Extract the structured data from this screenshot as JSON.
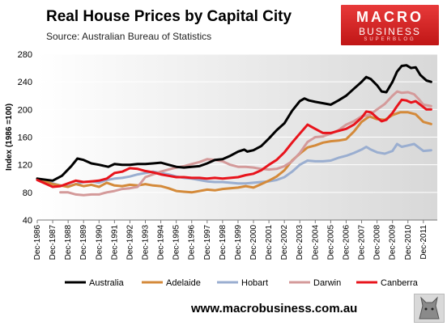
{
  "title": "Real House Prices by Capital City",
  "subtitle": "Source: Australian Bureau of Statistics",
  "logo": {
    "line1": "MACRO",
    "line2": "BUSINESS",
    "line3": "SUPERBLOG"
  },
  "footer": "www.macrobusiness.com.au",
  "chart_data": {
    "type": "line",
    "title": "Real House Prices by Capital City",
    "ylabel": "Index (1986 =100)",
    "xlabel": "",
    "ylim": [
      40,
      280
    ],
    "yticks": [
      40,
      80,
      120,
      160,
      200,
      240,
      280
    ],
    "xticks": [
      "Dec-1986",
      "Dec-1987",
      "Dec-1988",
      "Dec-1989",
      "Dec-1990",
      "Dec-1991",
      "Dec-1992",
      "Dec-1993",
      "Dec-1994",
      "Dec-1995",
      "Dec-1996",
      "Dec-1997",
      "Dec-1998",
      "Dec-1999",
      "Dec-2000",
      "Dec-2001",
      "Dec-2002",
      "Dec-2003",
      "Dec-2004",
      "Dec-2005",
      "Dec-2006",
      "Dec-2007",
      "Dec-2008",
      "Dec-2009",
      "Dec-2010",
      "Dec-2011"
    ],
    "grid": true,
    "legend_position": "bottom",
    "series": [
      {
        "name": "Australia",
        "color": "#000000",
        "points": [
          [
            1986,
            100
          ],
          [
            1987,
            97
          ],
          [
            1987.6,
            104
          ],
          [
            1988.2,
            118
          ],
          [
            1988.6,
            129
          ],
          [
            1989,
            127
          ],
          [
            1989.5,
            122
          ],
          [
            1990,
            120
          ],
          [
            1990.6,
            117
          ],
          [
            1991,
            121
          ],
          [
            1991.5,
            120
          ],
          [
            1992,
            120
          ],
          [
            1992.5,
            121
          ],
          [
            1993,
            121
          ],
          [
            1993.5,
            122
          ],
          [
            1994,
            123
          ],
          [
            1994.5,
            120
          ],
          [
            1995,
            117
          ],
          [
            1995.5,
            116
          ],
          [
            1996,
            117
          ],
          [
            1996.5,
            118
          ],
          [
            1997,
            122
          ],
          [
            1997.5,
            127
          ],
          [
            1998,
            128
          ],
          [
            1998.5,
            133
          ],
          [
            1999,
            139
          ],
          [
            1999.4,
            142
          ],
          [
            1999.6,
            139
          ],
          [
            2000,
            141
          ],
          [
            2000.5,
            147
          ],
          [
            2001,
            158
          ],
          [
            2001.5,
            170
          ],
          [
            2002,
            180
          ],
          [
            2002.5,
            198
          ],
          [
            2003,
            212
          ],
          [
            2003.3,
            216
          ],
          [
            2003.6,
            213
          ],
          [
            2004,
            211
          ],
          [
            2004.5,
            209
          ],
          [
            2005,
            207
          ],
          [
            2005.5,
            213
          ],
          [
            2006,
            220
          ],
          [
            2006.5,
            230
          ],
          [
            2007,
            240
          ],
          [
            2007.3,
            247
          ],
          [
            2007.6,
            244
          ],
          [
            2008,
            235
          ],
          [
            2008.3,
            226
          ],
          [
            2008.6,
            225
          ],
          [
            2009,
            240
          ],
          [
            2009.3,
            255
          ],
          [
            2009.6,
            263
          ],
          [
            2009.9,
            264
          ],
          [
            2010.2,
            260
          ],
          [
            2010.5,
            261
          ],
          [
            2010.8,
            250
          ],
          [
            2011.2,
            242
          ],
          [
            2011.5,
            240
          ]
        ]
      },
      {
        "name": "Adelaide",
        "color": "#d48a3a",
        "points": [
          [
            1986,
            100
          ],
          [
            1987,
            92
          ],
          [
            1988,
            88
          ],
          [
            1988.5,
            92
          ],
          [
            1989,
            89
          ],
          [
            1989.5,
            91
          ],
          [
            1990,
            88
          ],
          [
            1990.5,
            94
          ],
          [
            1991,
            90
          ],
          [
            1991.5,
            89
          ],
          [
            1992,
            91
          ],
          [
            1992.5,
            90
          ],
          [
            1993,
            92
          ],
          [
            1993.5,
            90
          ],
          [
            1994,
            89
          ],
          [
            1994.5,
            86
          ],
          [
            1995,
            82
          ],
          [
            1995.5,
            81
          ],
          [
            1996,
            80
          ],
          [
            1996.5,
            82
          ],
          [
            1997,
            84
          ],
          [
            1997.5,
            83
          ],
          [
            1998,
            85
          ],
          [
            1998.5,
            86
          ],
          [
            1999,
            87
          ],
          [
            1999.5,
            89
          ],
          [
            2000,
            87
          ],
          [
            2000.5,
            92
          ],
          [
            2001,
            97
          ],
          [
            2001.5,
            103
          ],
          [
            2002,
            112
          ],
          [
            2002.5,
            126
          ],
          [
            2003,
            136
          ],
          [
            2003.5,
            145
          ],
          [
            2004,
            148
          ],
          [
            2004.5,
            152
          ],
          [
            2005,
            154
          ],
          [
            2005.5,
            155
          ],
          [
            2006,
            157
          ],
          [
            2006.5,
            168
          ],
          [
            2007,
            182
          ],
          [
            2007.5,
            190
          ],
          [
            2008,
            186
          ],
          [
            2008.5,
            185
          ],
          [
            2009,
            192
          ],
          [
            2009.5,
            196
          ],
          [
            2010,
            196
          ],
          [
            2010.5,
            193
          ],
          [
            2011,
            182
          ],
          [
            2011.5,
            179
          ]
        ]
      },
      {
        "name": "Hobart",
        "color": "#9aaed0",
        "points": [
          [
            1986,
            100
          ],
          [
            1987,
            93
          ],
          [
            1987.5,
            90
          ],
          [
            1988,
            89
          ],
          [
            1988.5,
            92
          ],
          [
            1989,
            95
          ],
          [
            1989.5,
            96
          ],
          [
            1990,
            94
          ],
          [
            1990.5,
            98
          ],
          [
            1991,
            100
          ],
          [
            1991.5,
            101
          ],
          [
            1992,
            103
          ],
          [
            1992.5,
            106
          ],
          [
            1993,
            108
          ],
          [
            1993.5,
            110
          ],
          [
            1994,
            108
          ],
          [
            1994.5,
            106
          ],
          [
            1995,
            103
          ],
          [
            1995.5,
            101
          ],
          [
            1996,
            100
          ],
          [
            1996.5,
            98
          ],
          [
            1997,
            96
          ],
          [
            1997.5,
            95
          ],
          [
            1998,
            95
          ],
          [
            1998.5,
            94
          ],
          [
            1999,
            93
          ],
          [
            1999.5,
            93
          ],
          [
            2000,
            94
          ],
          [
            2000.5,
            95
          ],
          [
            2001,
            96
          ],
          [
            2001.5,
            98
          ],
          [
            2002,
            102
          ],
          [
            2002.5,
            110
          ],
          [
            2003,
            120
          ],
          [
            2003.5,
            126
          ],
          [
            2004,
            125
          ],
          [
            2004.5,
            125
          ],
          [
            2005,
            126
          ],
          [
            2005.5,
            130
          ],
          [
            2006,
            133
          ],
          [
            2006.5,
            137
          ],
          [
            2007,
            142
          ],
          [
            2007.3,
            146
          ],
          [
            2007.6,
            142
          ],
          [
            2008,
            138
          ],
          [
            2008.5,
            136
          ],
          [
            2009,
            140
          ],
          [
            2009.3,
            150
          ],
          [
            2009.6,
            146
          ],
          [
            2010,
            148
          ],
          [
            2010.4,
            150
          ],
          [
            2010.7,
            145
          ],
          [
            2011,
            140
          ],
          [
            2011.5,
            141
          ]
        ]
      },
      {
        "name": "Darwin",
        "color": "#d49a9a",
        "points": [
          [
            1987.5,
            80
          ],
          [
            1988,
            80
          ],
          [
            1988.5,
            77
          ],
          [
            1989,
            76
          ],
          [
            1989.5,
            77
          ],
          [
            1990,
            77
          ],
          [
            1990.5,
            80
          ],
          [
            1991,
            82
          ],
          [
            1991.5,
            85
          ],
          [
            1992,
            86
          ],
          [
            1992.5,
            88
          ],
          [
            1993,
            102
          ],
          [
            1993.5,
            106
          ],
          [
            1994,
            110
          ],
          [
            1994.5,
            113
          ],
          [
            1995,
            116
          ],
          [
            1995.5,
            118
          ],
          [
            1996,
            121
          ],
          [
            1996.5,
            124
          ],
          [
            1997,
            128
          ],
          [
            1997.5,
            127
          ],
          [
            1998,
            125
          ],
          [
            1998.5,
            120
          ],
          [
            1999,
            117
          ],
          [
            1999.5,
            117
          ],
          [
            2000,
            116
          ],
          [
            2000.5,
            114
          ],
          [
            2001,
            113
          ],
          [
            2001.5,
            114
          ],
          [
            2002,
            118
          ],
          [
            2002.5,
            125
          ],
          [
            2003,
            137
          ],
          [
            2003.5,
            153
          ],
          [
            2004,
            160
          ],
          [
            2004.5,
            161
          ],
          [
            2005,
            165
          ],
          [
            2005.5,
            170
          ],
          [
            2006,
            178
          ],
          [
            2006.5,
            183
          ],
          [
            2007,
            190
          ],
          [
            2007.5,
            192
          ],
          [
            2008,
            200
          ],
          [
            2008.5,
            208
          ],
          [
            2009,
            220
          ],
          [
            2009.3,
            226
          ],
          [
            2009.6,
            224
          ],
          [
            2010,
            225
          ],
          [
            2010.4,
            222
          ],
          [
            2010.7,
            215
          ],
          [
            2011,
            207
          ],
          [
            2011.5,
            205
          ]
        ]
      },
      {
        "name": "Canberra",
        "color": "#e8141c",
        "points": [
          [
            1986,
            98
          ],
          [
            1987,
            88
          ],
          [
            1987.5,
            89
          ],
          [
            1988,
            93
          ],
          [
            1988.5,
            97
          ],
          [
            1989,
            95
          ],
          [
            1989.5,
            96
          ],
          [
            1990,
            97
          ],
          [
            1990.5,
            100
          ],
          [
            1991,
            108
          ],
          [
            1991.5,
            110
          ],
          [
            1992,
            115
          ],
          [
            1992.5,
            114
          ],
          [
            1993,
            111
          ],
          [
            1993.5,
            109
          ],
          [
            1994,
            106
          ],
          [
            1994.5,
            104
          ],
          [
            1995,
            102
          ],
          [
            1995.5,
            102
          ],
          [
            1996,
            101
          ],
          [
            1996.5,
            101
          ],
          [
            1997,
            100
          ],
          [
            1997.5,
            101
          ],
          [
            1998,
            100
          ],
          [
            1998.5,
            101
          ],
          [
            1999,
            102
          ],
          [
            1999.5,
            105
          ],
          [
            2000,
            107
          ],
          [
            2000.5,
            112
          ],
          [
            2001,
            120
          ],
          [
            2001.5,
            127
          ],
          [
            2002,
            138
          ],
          [
            2002.5,
            152
          ],
          [
            2003,
            165
          ],
          [
            2003.5,
            178
          ],
          [
            2004,
            172
          ],
          [
            2004.5,
            166
          ],
          [
            2005,
            166
          ],
          [
            2005.5,
            169
          ],
          [
            2006,
            172
          ],
          [
            2006.5,
            178
          ],
          [
            2007,
            188
          ],
          [
            2007.3,
            197
          ],
          [
            2007.6,
            196
          ],
          [
            2008,
            188
          ],
          [
            2008.3,
            183
          ],
          [
            2008.6,
            185
          ],
          [
            2009,
            195
          ],
          [
            2009.3,
            205
          ],
          [
            2009.6,
            214
          ],
          [
            2009.9,
            213
          ],
          [
            2010.2,
            210
          ],
          [
            2010.5,
            212
          ],
          [
            2010.8,
            207
          ],
          [
            2011.2,
            200
          ],
          [
            2011.5,
            200
          ]
        ]
      }
    ]
  }
}
